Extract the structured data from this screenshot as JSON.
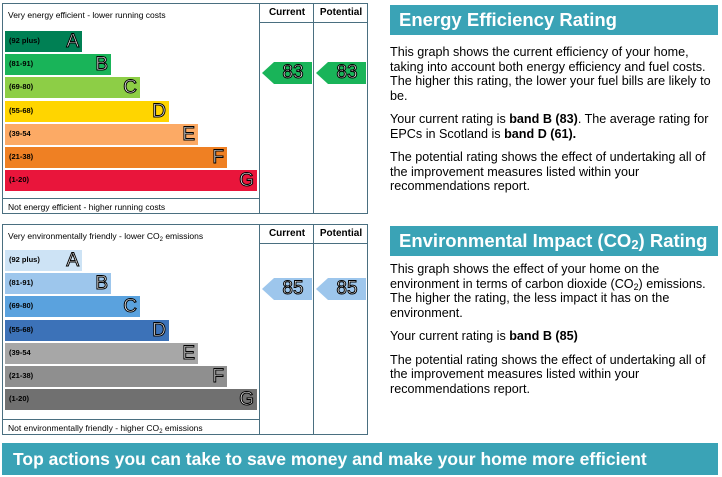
{
  "energy_chart": {
    "top_label": "Very energy efficient - lower running costs",
    "bottom_label": "Not energy efficient - higher running costs",
    "current_header": "Current",
    "potential_header": "Potential",
    "current_value": "83",
    "potential_value": "83",
    "bands": [
      {
        "range": "(92 plus)",
        "letter": "A",
        "color": "#008054"
      },
      {
        "range": "(81-91)",
        "letter": "B",
        "color": "#19b459"
      },
      {
        "range": "(69-80)",
        "letter": "C",
        "color": "#8dce46"
      },
      {
        "range": "(55-68)",
        "letter": "D",
        "color": "#ffd500"
      },
      {
        "range": "(39-54",
        "letter": "E",
        "color": "#fcaa65"
      },
      {
        "range": "(21-38)",
        "letter": "F",
        "color": "#ef8023"
      },
      {
        "range": "(1-20)",
        "letter": "G",
        "color": "#e9153b"
      }
    ],
    "arrow_color": "#19b459"
  },
  "impact_chart": {
    "top_label_pre": "Very environmentally friendly - lower CO",
    "top_label_sub": "2",
    "top_label_post": " emissions",
    "bottom_label_pre": "Not environmentally friendly - higher CO",
    "bottom_label_sub": "2",
    "bottom_label_post": " emissions",
    "current_header": "Current",
    "potential_header": "Potential",
    "current_value": "85",
    "potential_value": "85",
    "bands": [
      {
        "range": "(92 plus)",
        "letter": "A",
        "color": "#cde3f5"
      },
      {
        "range": "(81-91)",
        "letter": "B",
        "color": "#9dc6ec"
      },
      {
        "range": "(69-80)",
        "letter": "C",
        "color": "#5aa2de"
      },
      {
        "range": "(55-68)",
        "letter": "D",
        "color": "#3c72b8"
      },
      {
        "range": "(39-54",
        "letter": "E",
        "color": "#a7a7a7"
      },
      {
        "range": "(21-38)",
        "letter": "F",
        "color": "#8f8f8f"
      },
      {
        "range": "(1-20)",
        "letter": "G",
        "color": "#707070"
      }
    ],
    "arrow_color": "#9dc6ec"
  },
  "energy_panel": {
    "title": "Energy Efficiency Rating",
    "p1": "This graph shows the current efficiency of your home, taking into account both energy efficiency and fuel costs. The higher this rating, the lower your fuel bills are likely to be.",
    "p2_pre": "Your current rating is ",
    "p2_band": "band B (83)",
    "p2_mid": ". The average rating for EPCs in Scotland is ",
    "p2_avg": "band D (61).",
    "p3": "The potential rating shows the effect of undertaking all of the improvement measures listed within your recommendations report."
  },
  "impact_panel": {
    "title_pre": "Environmental Impact (CO",
    "title_sub": "2",
    "title_post": ") Rating",
    "p1_pre": "This graph shows the effect of your home on the environment in terms of carbon dioxide (CO",
    "p1_sub": "2",
    "p1_post": ") emissions. The higher the rating, the less impact it has on the environment.",
    "p2_pre": "Your current rating is ",
    "p2_band": "band B (85)",
    "p3": "The potential rating shows the effect of undertaking all of the improvement measures listed within your recommendations report."
  },
  "footer": {
    "title": "Top actions you can take to save money and make your home more efficient"
  }
}
